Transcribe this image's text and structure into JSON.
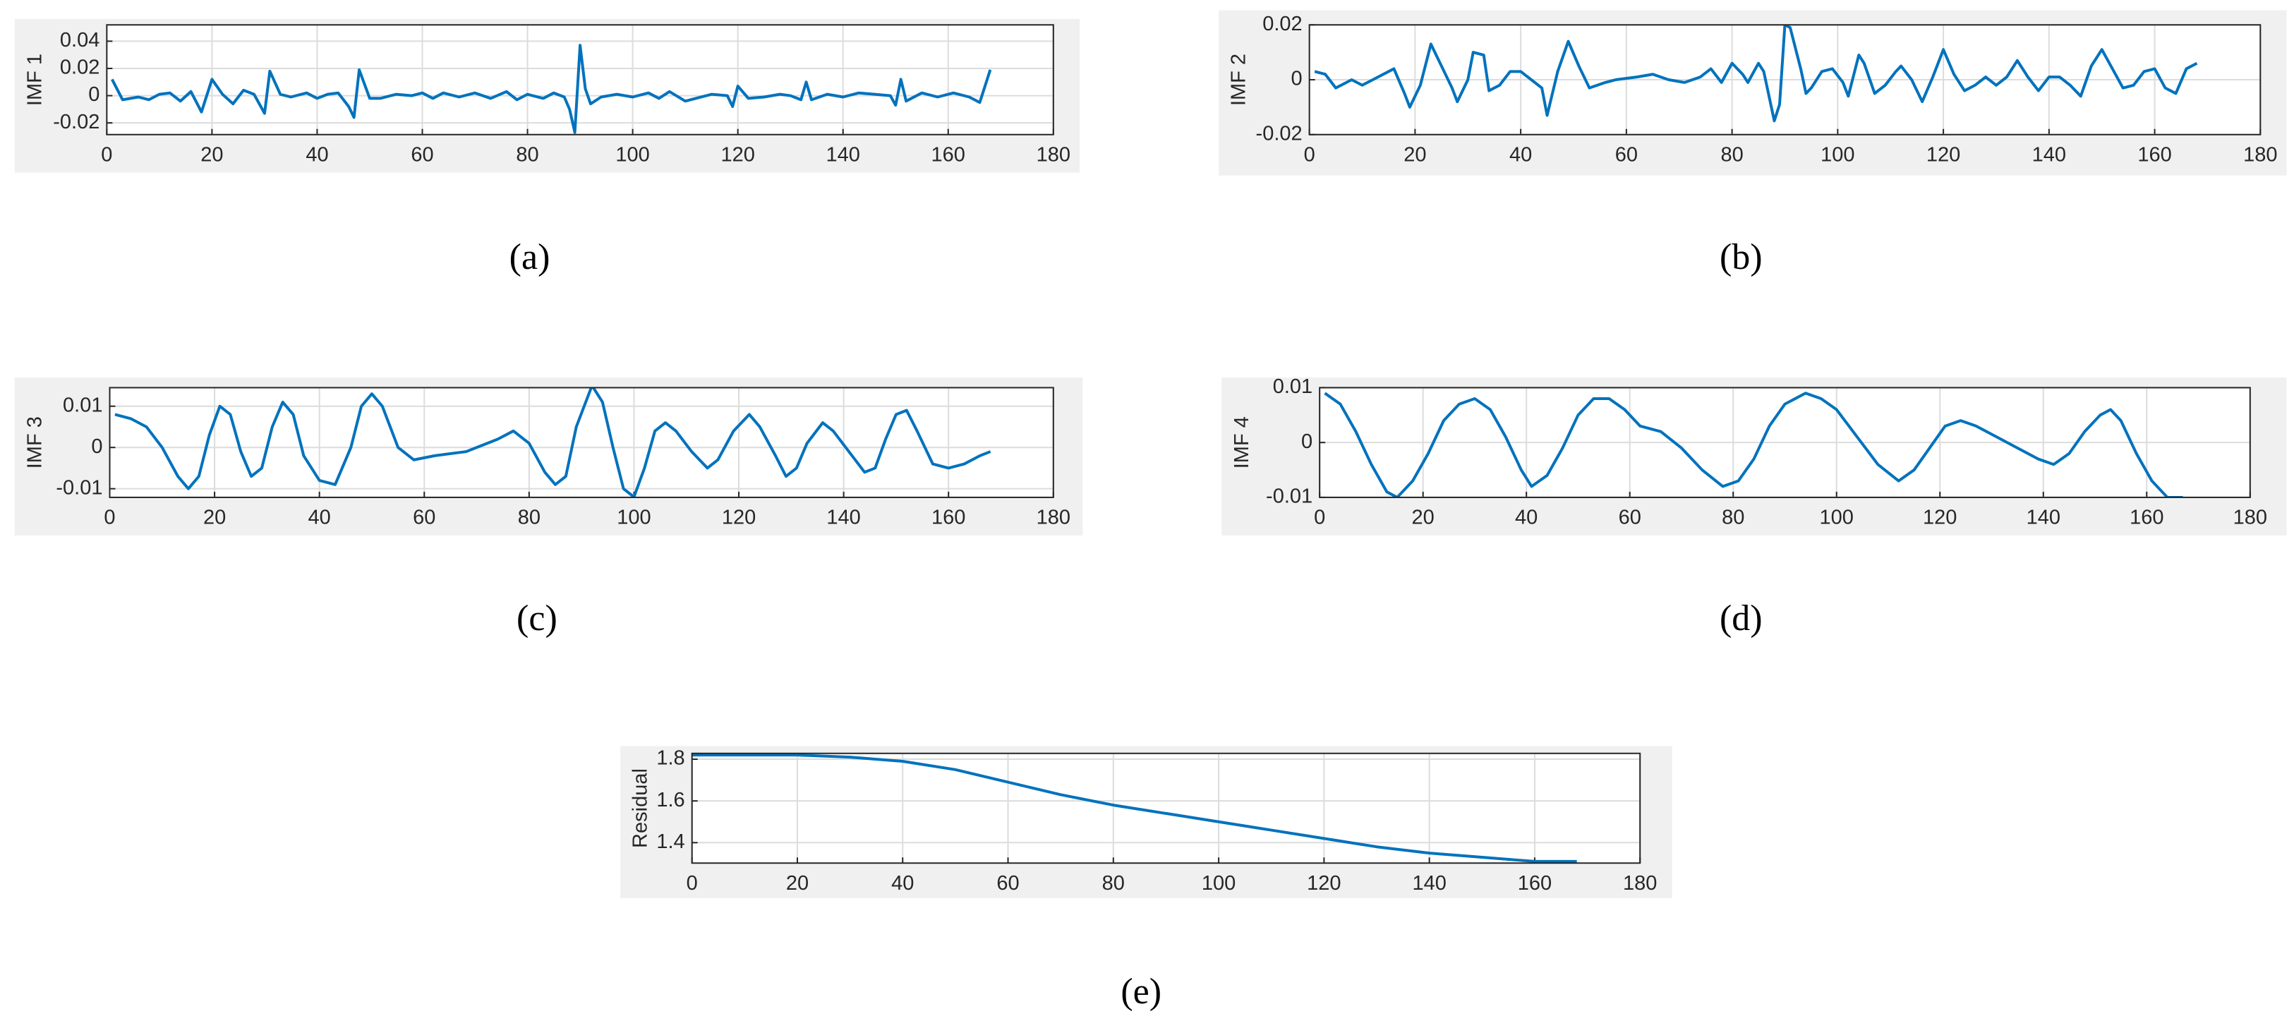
{
  "chart_data": [
    {
      "type": "line",
      "caption": "a",
      "ylabel": "IMF 1",
      "color": "#0072bd",
      "grid": true,
      "xlim": [
        0,
        180
      ],
      "xticks": [
        0,
        20,
        40,
        60,
        80,
        100,
        120,
        140,
        160,
        180
      ],
      "ylim": [
        -0.0286,
        0.052
      ],
      "yticks": [
        -0.02,
        0,
        0.02,
        0.04
      ],
      "x": [
        1,
        3,
        6,
        8,
        10,
        12,
        14,
        16,
        18,
        20,
        22,
        24,
        26,
        28,
        30,
        31,
        33,
        35,
        38,
        40,
        42,
        44,
        46,
        47,
        48,
        50,
        52,
        55,
        58,
        60,
        62,
        64,
        67,
        70,
        73,
        76,
        78,
        80,
        83,
        85,
        87,
        88,
        89,
        90,
        91,
        92,
        94,
        97,
        100,
        103,
        105,
        107,
        110,
        112,
        115,
        118,
        119,
        120,
        122,
        125,
        128,
        130,
        132,
        133,
        134,
        137,
        140,
        143,
        146,
        149,
        150,
        151,
        152,
        155,
        158,
        161,
        164,
        166,
        168
      ],
      "values": [
        0.012,
        -0.003,
        -0.001,
        -0.003,
        0.001,
        0.002,
        -0.004,
        0.003,
        -0.012,
        0.012,
        0.001,
        -0.006,
        0.004,
        0.001,
        -0.013,
        0.018,
        0.001,
        -0.001,
        0.002,
        -0.002,
        0.001,
        0.002,
        -0.008,
        -0.016,
        0.019,
        -0.002,
        -0.002,
        0.001,
        0,
        0.002,
        -0.002,
        0.002,
        -0.001,
        0.002,
        -0.002,
        0.003,
        -0.003,
        0.001,
        -0.002,
        0.002,
        -0.001,
        -0.01,
        -0.027,
        0.037,
        0.005,
        -0.006,
        -0.001,
        0.001,
        -0.001,
        0.002,
        -0.002,
        0.003,
        -0.004,
        -0.002,
        0.001,
        0,
        -0.008,
        0.007,
        -0.002,
        -0.001,
        0.001,
        0,
        -0.003,
        0.01,
        -0.003,
        0.001,
        -0.001,
        0.002,
        0.001,
        0,
        -0.007,
        0.012,
        -0.004,
        0.002,
        -0.001,
        0.002,
        -0.001,
        -0.005,
        0.019
      ]
    },
    {
      "type": "line",
      "caption": "b",
      "ylabel": "IMF 2",
      "color": "#0072bd",
      "grid": true,
      "xlim": [
        0,
        180
      ],
      "xticks": [
        0,
        20,
        40,
        60,
        80,
        100,
        120,
        140,
        160,
        180
      ],
      "ylim": [
        -0.02,
        0.02
      ],
      "yticks": [
        -0.02,
        0,
        0.02
      ],
      "x": [
        1,
        3,
        5,
        8,
        10,
        13,
        16,
        18,
        19,
        21,
        23,
        25,
        27,
        28,
        30,
        31,
        33,
        34,
        36,
        38,
        40,
        42,
        44,
        45,
        47,
        49,
        51,
        53,
        56,
        58,
        62,
        65,
        68,
        71,
        74,
        76,
        78,
        80,
        82,
        83,
        85,
        86,
        88,
        89,
        90,
        91,
        93,
        94,
        95,
        97,
        99,
        101,
        102,
        104,
        105,
        107,
        109,
        111,
        112,
        114,
        116,
        118,
        120,
        122,
        124,
        126,
        128,
        130,
        132,
        134,
        136,
        138,
        140,
        142,
        144,
        146,
        148,
        150,
        152,
        154,
        156,
        158,
        160,
        162,
        164,
        166,
        168
      ],
      "values": [
        0.003,
        0.002,
        -0.003,
        0,
        -0.002,
        0.001,
        0.004,
        -0.005,
        -0.01,
        -0.002,
        0.013,
        0.005,
        -0.003,
        -0.008,
        0,
        0.01,
        0.009,
        -0.004,
        -0.002,
        0.003,
        0.003,
        0,
        -0.003,
        -0.013,
        0.003,
        0.014,
        0.005,
        -0.003,
        -0.001,
        0,
        0.001,
        0.002,
        0,
        -0.001,
        0.001,
        0.004,
        -0.001,
        0.006,
        0.002,
        -0.001,
        0.006,
        0.003,
        -0.015,
        -0.009,
        0.02,
        0.019,
        0.004,
        -0.005,
        -0.003,
        0.003,
        0.004,
        -0.001,
        -0.006,
        0.009,
        0.006,
        -0.005,
        -0.002,
        0.003,
        0.005,
        0,
        -0.008,
        0.001,
        0.011,
        0.002,
        -0.004,
        -0.002,
        0.001,
        -0.002,
        0.001,
        0.007,
        0.001,
        -0.004,
        0.001,
        0.001,
        -0.002,
        -0.006,
        0.005,
        0.011,
        0.004,
        -0.003,
        -0.002,
        0.003,
        0.004,
        -0.003,
        -0.005,
        0.004,
        0.006
      ]
    },
    {
      "type": "line",
      "caption": "c",
      "ylabel": "IMF 3",
      "color": "#0072bd",
      "grid": true,
      "xlim": [
        0,
        180
      ],
      "xticks": [
        0,
        20,
        40,
        60,
        80,
        100,
        120,
        140,
        160,
        180
      ],
      "ylim": [
        -0.0121,
        0.0145
      ],
      "yticks": [
        -0.01,
        0,
        0.01
      ],
      "x": [
        1,
        4,
        7,
        10,
        13,
        15,
        17,
        19,
        21,
        23,
        25,
        27,
        29,
        31,
        33,
        35,
        37,
        40,
        43,
        46,
        48,
        50,
        52,
        55,
        58,
        62,
        68,
        74,
        77,
        80,
        83,
        85,
        87,
        89,
        92,
        94,
        96,
        98,
        100,
        102,
        104,
        106,
        108,
        111,
        114,
        116,
        119,
        122,
        124,
        127,
        129,
        131,
        133,
        136,
        138,
        141,
        144,
        146,
        148,
        150,
        152,
        154,
        157,
        160,
        163,
        166,
        168
      ],
      "values": [
        0.008,
        0.007,
        0.005,
        0,
        -0.007,
        -0.01,
        -0.007,
        0.003,
        0.01,
        0.008,
        -0.001,
        -0.007,
        -0.005,
        0.005,
        0.011,
        0.008,
        -0.002,
        -0.008,
        -0.009,
        0,
        0.01,
        0.013,
        0.01,
        0,
        -0.003,
        -0.002,
        -0.001,
        0.002,
        0.004,
        0.001,
        -0.006,
        -0.009,
        -0.007,
        0.005,
        0.015,
        0.011,
        0,
        -0.01,
        -0.012,
        -0.005,
        0.004,
        0.006,
        0.004,
        -0.001,
        -0.005,
        -0.003,
        0.004,
        0.008,
        0.005,
        -0.002,
        -0.007,
        -0.005,
        0.001,
        0.006,
        0.004,
        -0.001,
        -0.006,
        -0.005,
        0.002,
        0.008,
        0.009,
        0.004,
        -0.004,
        -0.005,
        -0.004,
        -0.002,
        -0.001
      ]
    },
    {
      "type": "line",
      "caption": "d",
      "ylabel": "IMF 4",
      "color": "#0072bd",
      "grid": true,
      "xlim": [
        0,
        180
      ],
      "xticks": [
        0,
        20,
        40,
        60,
        80,
        100,
        120,
        140,
        160,
        180
      ],
      "ylim": [
        -0.01,
        0.01
      ],
      "yticks": [
        -0.01,
        0,
        0.01
      ],
      "x": [
        1,
        4,
        7,
        10,
        13,
        15,
        18,
        21,
        24,
        27,
        30,
        33,
        36,
        39,
        41,
        44,
        47,
        50,
        53,
        56,
        59,
        62,
        66,
        70,
        74,
        78,
        81,
        84,
        87,
        90,
        94,
        97,
        100,
        104,
        108,
        112,
        115,
        118,
        121,
        124,
        127,
        131,
        135,
        139,
        142,
        145,
        148,
        151,
        153,
        155,
        158,
        161,
        164,
        167
      ],
      "values": [
        0.009,
        0.007,
        0.002,
        -0.004,
        -0.009,
        -0.01,
        -0.007,
        -0.002,
        0.004,
        0.007,
        0.008,
        0.006,
        0.001,
        -0.005,
        -0.008,
        -0.006,
        -0.001,
        0.005,
        0.008,
        0.008,
        0.006,
        0.003,
        0.002,
        -0.001,
        -0.005,
        -0.008,
        -0.007,
        -0.003,
        0.003,
        0.007,
        0.009,
        0.008,
        0.006,
        0.001,
        -0.004,
        -0.007,
        -0.005,
        -0.001,
        0.003,
        0.004,
        0.003,
        0.001,
        -0.001,
        -0.003,
        -0.004,
        -0.002,
        0.002,
        0.005,
        0.006,
        0.004,
        -0.002,
        -0.007,
        -0.01,
        -0.01
      ]
    },
    {
      "type": "line",
      "caption": "e",
      "ylabel": "Residual",
      "color": "#0072bd",
      "grid": true,
      "xlim": [
        0,
        180
      ],
      "xticks": [
        0,
        20,
        40,
        60,
        80,
        100,
        120,
        140,
        160,
        180
      ],
      "ylim": [
        1.302,
        1.828
      ],
      "yticks": [
        1.4,
        1.6,
        1.8
      ],
      "x": [
        0,
        10,
        20,
        30,
        40,
        50,
        60,
        70,
        80,
        90,
        100,
        110,
        120,
        130,
        140,
        150,
        160,
        168
      ],
      "values": [
        1.82,
        1.82,
        1.82,
        1.81,
        1.79,
        1.75,
        1.69,
        1.63,
        1.58,
        1.54,
        1.5,
        1.46,
        1.42,
        1.38,
        1.35,
        1.33,
        1.31,
        1.31
      ]
    }
  ]
}
